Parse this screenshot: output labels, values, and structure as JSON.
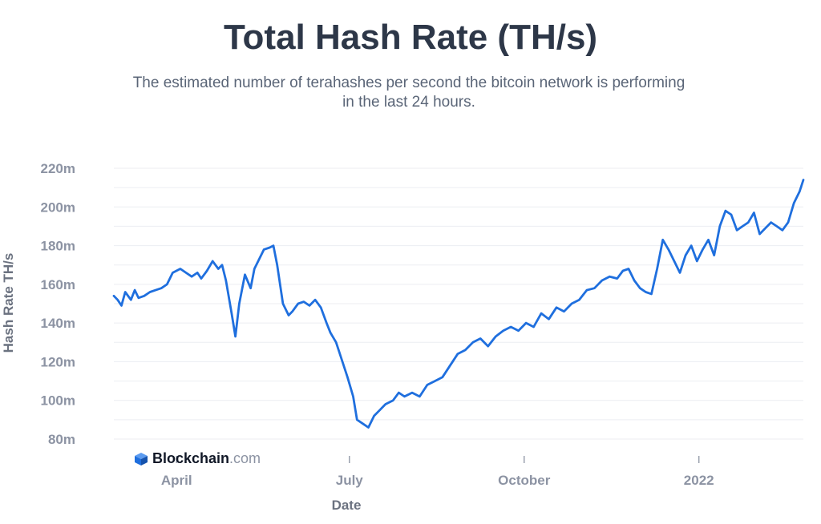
{
  "chart_data": {
    "type": "line",
    "title": "Total Hash Rate (TH/s)",
    "subtitle": "The estimated number of terahashes per second the bitcoin network is performing in the last 24 hours.",
    "xlabel": "Date",
    "ylabel": "Hash Rate TH/s",
    "ylim": [
      80,
      220
    ],
    "yticks": [
      "80m",
      "100m",
      "120m",
      "140m",
      "160m",
      "180m",
      "200m",
      "220m"
    ],
    "xticks": [
      {
        "label": "April",
        "date": "2021-04-01"
      },
      {
        "label": "July",
        "date": "2021-07-01"
      },
      {
        "label": "October",
        "date": "2021-10-01"
      },
      {
        "label": "2022",
        "date": "2022-01-01"
      }
    ],
    "grid": true,
    "series": [
      {
        "color": "#1f6fde",
        "x": [
          "2021-02-27",
          "2021-03-01",
          "2021-03-03",
          "2021-03-05",
          "2021-03-08",
          "2021-03-10",
          "2021-03-12",
          "2021-03-15",
          "2021-03-18",
          "2021-03-21",
          "2021-03-24",
          "2021-03-27",
          "2021-03-30",
          "2021-04-03",
          "2021-04-06",
          "2021-04-09",
          "2021-04-12",
          "2021-04-14",
          "2021-04-17",
          "2021-04-20",
          "2021-04-23",
          "2021-04-25",
          "2021-04-27",
          "2021-04-30",
          "2021-05-02",
          "2021-05-04",
          "2021-05-07",
          "2021-05-10",
          "2021-05-12",
          "2021-05-15",
          "2021-05-17",
          "2021-05-20",
          "2021-05-22",
          "2021-05-24",
          "2021-05-27",
          "2021-05-30",
          "2021-06-01",
          "2021-06-04",
          "2021-06-07",
          "2021-06-10",
          "2021-06-13",
          "2021-06-16",
          "2021-06-19",
          "2021-06-21",
          "2021-06-24",
          "2021-06-27",
          "2021-06-30",
          "2021-07-03",
          "2021-07-05",
          "2021-07-08",
          "2021-07-11",
          "2021-07-14",
          "2021-07-17",
          "2021-07-20",
          "2021-07-24",
          "2021-07-27",
          "2021-07-30",
          "2021-08-03",
          "2021-08-07",
          "2021-08-11",
          "2021-08-15",
          "2021-08-19",
          "2021-08-23",
          "2021-08-27",
          "2021-08-31",
          "2021-09-04",
          "2021-09-08",
          "2021-09-12",
          "2021-09-16",
          "2021-09-20",
          "2021-09-24",
          "2021-09-28",
          "2021-10-02",
          "2021-10-06",
          "2021-10-10",
          "2021-10-14",
          "2021-10-18",
          "2021-10-22",
          "2021-10-26",
          "2021-10-30",
          "2021-11-03",
          "2021-11-07",
          "2021-11-11",
          "2021-11-15",
          "2021-11-19",
          "2021-11-22",
          "2021-11-25",
          "2021-11-28",
          "2021-12-01",
          "2021-12-04",
          "2021-12-07",
          "2021-12-10",
          "2021-12-13",
          "2021-12-16",
          "2021-12-19",
          "2021-12-22",
          "2021-12-25",
          "2021-12-28",
          "2021-12-31",
          "2022-01-03",
          "2022-01-06",
          "2022-01-09",
          "2022-01-12",
          "2022-01-15",
          "2022-01-18",
          "2022-01-21",
          "2022-01-24",
          "2022-01-27",
          "2022-01-30",
          "2022-02-02",
          "2022-02-05",
          "2022-02-08",
          "2022-02-11",
          "2022-02-14",
          "2022-02-17",
          "2022-02-20",
          "2022-02-23",
          "2022-02-25"
        ],
        "y": [
          154,
          152,
          149,
          156,
          152,
          157,
          153,
          154,
          156,
          157,
          158,
          160,
          166,
          168,
          166,
          164,
          166,
          163,
          167,
          172,
          168,
          170,
          162,
          145,
          133,
          150,
          165,
          158,
          168,
          174,
          178,
          179,
          180,
          170,
          150,
          144,
          146,
          150,
          151,
          149,
          152,
          148,
          140,
          135,
          130,
          121,
          112,
          102,
          90,
          88,
          86,
          92,
          95,
          98,
          100,
          104,
          102,
          104,
          102,
          108,
          110,
          112,
          118,
          124,
          126,
          130,
          132,
          128,
          133,
          136,
          138,
          136,
          140,
          138,
          145,
          142,
          148,
          146,
          150,
          152,
          157,
          158,
          162,
          164,
          163,
          167,
          168,
          162,
          158,
          156,
          155,
          168,
          183,
          178,
          172,
          166,
          175,
          180,
          172,
          178,
          183,
          175,
          190,
          198,
          196,
          188,
          190,
          192,
          197,
          186,
          189,
          192,
          190,
          188,
          192,
          202,
          208,
          214
        ]
      }
    ]
  },
  "branding": {
    "logo_icon": "blockchain-cube-icon",
    "logo_text_bold": "Blockchain",
    "logo_text_light": ".com",
    "logo_color": "#1f6fde"
  }
}
